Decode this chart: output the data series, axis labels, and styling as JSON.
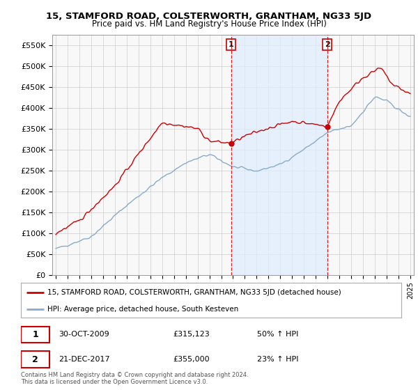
{
  "title": "15, STAMFORD ROAD, COLSTERWORTH, GRANTHAM, NG33 5JD",
  "subtitle": "Price paid vs. HM Land Registry's House Price Index (HPI)",
  "ylabel_ticks": [
    "£0",
    "£50K",
    "£100K",
    "£150K",
    "£200K",
    "£250K",
    "£300K",
    "£350K",
    "£400K",
    "£450K",
    "£500K",
    "£550K"
  ],
  "ytick_values": [
    0,
    50000,
    100000,
    150000,
    200000,
    250000,
    300000,
    350000,
    400000,
    450000,
    500000,
    550000
  ],
  "ylim": [
    0,
    575000
  ],
  "xlim_left": 1994.7,
  "xlim_right": 2025.3,
  "red_line_label": "15, STAMFORD ROAD, COLSTERWORTH, GRANTHAM, NG33 5JD (detached house)",
  "blue_line_label": "HPI: Average price, detached house, South Kesteven",
  "sale1_date": "30-OCT-2009",
  "sale1_price": 315123,
  "sale1_pct": "50% ↑ HPI",
  "sale2_date": "21-DEC-2017",
  "sale2_price": 355000,
  "sale2_pct": "23% ↑ HPI",
  "footer": "Contains HM Land Registry data © Crown copyright and database right 2024.\nThis data is licensed under the Open Government Licence v3.0.",
  "background_color": "#ffffff",
  "plot_bg_color": "#f8f8f8",
  "grid_color": "#cccccc",
  "red_color": "#cc0000",
  "blue_color": "#88aacc",
  "vline_color": "#cc0000",
  "shade_color": "#ddeeff",
  "sale1_x_year": 2009.83,
  "sale2_x_year": 2017.97
}
